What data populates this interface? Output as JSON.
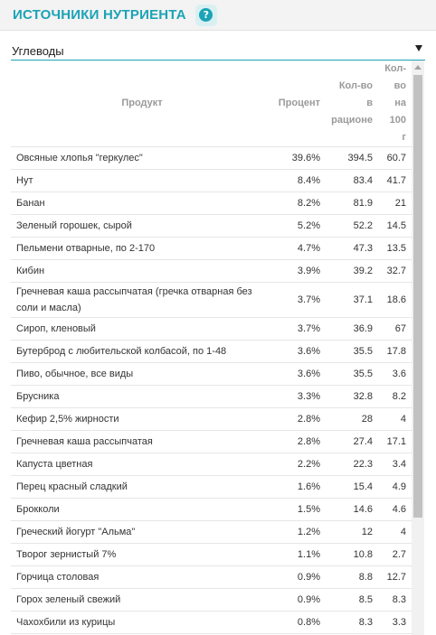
{
  "header": {
    "title": "ИСТОЧНИКИ НУТРИЕНТА",
    "help_icon": "question-circle-icon"
  },
  "selector": {
    "value": "Углеводы"
  },
  "table": {
    "columns": {
      "product": "Продукт",
      "percent": "Процент",
      "amount": [
        "Кол-во",
        "в",
        "рационе"
      ],
      "per100": [
        "Кол-",
        "во",
        "на",
        "100",
        "г"
      ]
    },
    "rows": [
      {
        "name": "Овсяные хлопья \"геркулес\"",
        "percent": "39.6%",
        "amount": "394.5",
        "per100": "60.7"
      },
      {
        "name": "Нут",
        "percent": "8.4%",
        "amount": "83.4",
        "per100": "41.7"
      },
      {
        "name": "Банан",
        "percent": "8.2%",
        "amount": "81.9",
        "per100": "21"
      },
      {
        "name": "Зеленый горошек, сырой",
        "percent": "5.2%",
        "amount": "52.2",
        "per100": "14.5"
      },
      {
        "name": "Пельмени отварные, по 2-170",
        "percent": "4.7%",
        "amount": "47.3",
        "per100": "13.5"
      },
      {
        "name": "Кибин",
        "percent": "3.9%",
        "amount": "39.2",
        "per100": "32.7"
      },
      {
        "name": "Гречневая каша рассыпчатая (гречка отварная без соли и масла)",
        "percent": "3.7%",
        "amount": "37.1",
        "per100": "18.6"
      },
      {
        "name": "Сироп, кленовый",
        "percent": "3.7%",
        "amount": "36.9",
        "per100": "67"
      },
      {
        "name": "Бутерброд с любительской колбасой, по 1-48",
        "percent": "3.6%",
        "amount": "35.5",
        "per100": "17.8"
      },
      {
        "name": "Пиво, обычное, все виды",
        "percent": "3.6%",
        "amount": "35.5",
        "per100": "3.6"
      },
      {
        "name": "Брусника",
        "percent": "3.3%",
        "amount": "32.8",
        "per100": "8.2"
      },
      {
        "name": "Кефир 2,5% жирности",
        "percent": "2.8%",
        "amount": "28",
        "per100": "4"
      },
      {
        "name": "Гречневая каша рассыпчатая",
        "percent": "2.8%",
        "amount": "27.4",
        "per100": "17.1"
      },
      {
        "name": "Капуста цветная",
        "percent": "2.2%",
        "amount": "22.3",
        "per100": "3.4"
      },
      {
        "name": "Перец красный сладкий",
        "percent": "1.6%",
        "amount": "15.4",
        "per100": "4.9"
      },
      {
        "name": "Брокколи",
        "percent": "1.5%",
        "amount": "14.6",
        "per100": "4.6"
      },
      {
        "name": "Греческий йогурт \"Альма\"",
        "percent": "1.2%",
        "amount": "12",
        "per100": "4"
      },
      {
        "name": "Творог зернистый 7%",
        "percent": "1.1%",
        "amount": "10.8",
        "per100": "2.7"
      },
      {
        "name": "Горчица столовая",
        "percent": "0.9%",
        "amount": "8.8",
        "per100": "12.7"
      },
      {
        "name": "Горох зеленый свежий",
        "percent": "0.9%",
        "amount": "8.5",
        "per100": "8.3"
      },
      {
        "name": "Чахохбили из курицы",
        "percent": "0.8%",
        "amount": "8.3",
        "per100": "3.3"
      }
    ]
  },
  "colors": {
    "accent": "#1ba3b6",
    "header_bg": "#f3f3f3",
    "row_border": "#e6e6e6"
  }
}
